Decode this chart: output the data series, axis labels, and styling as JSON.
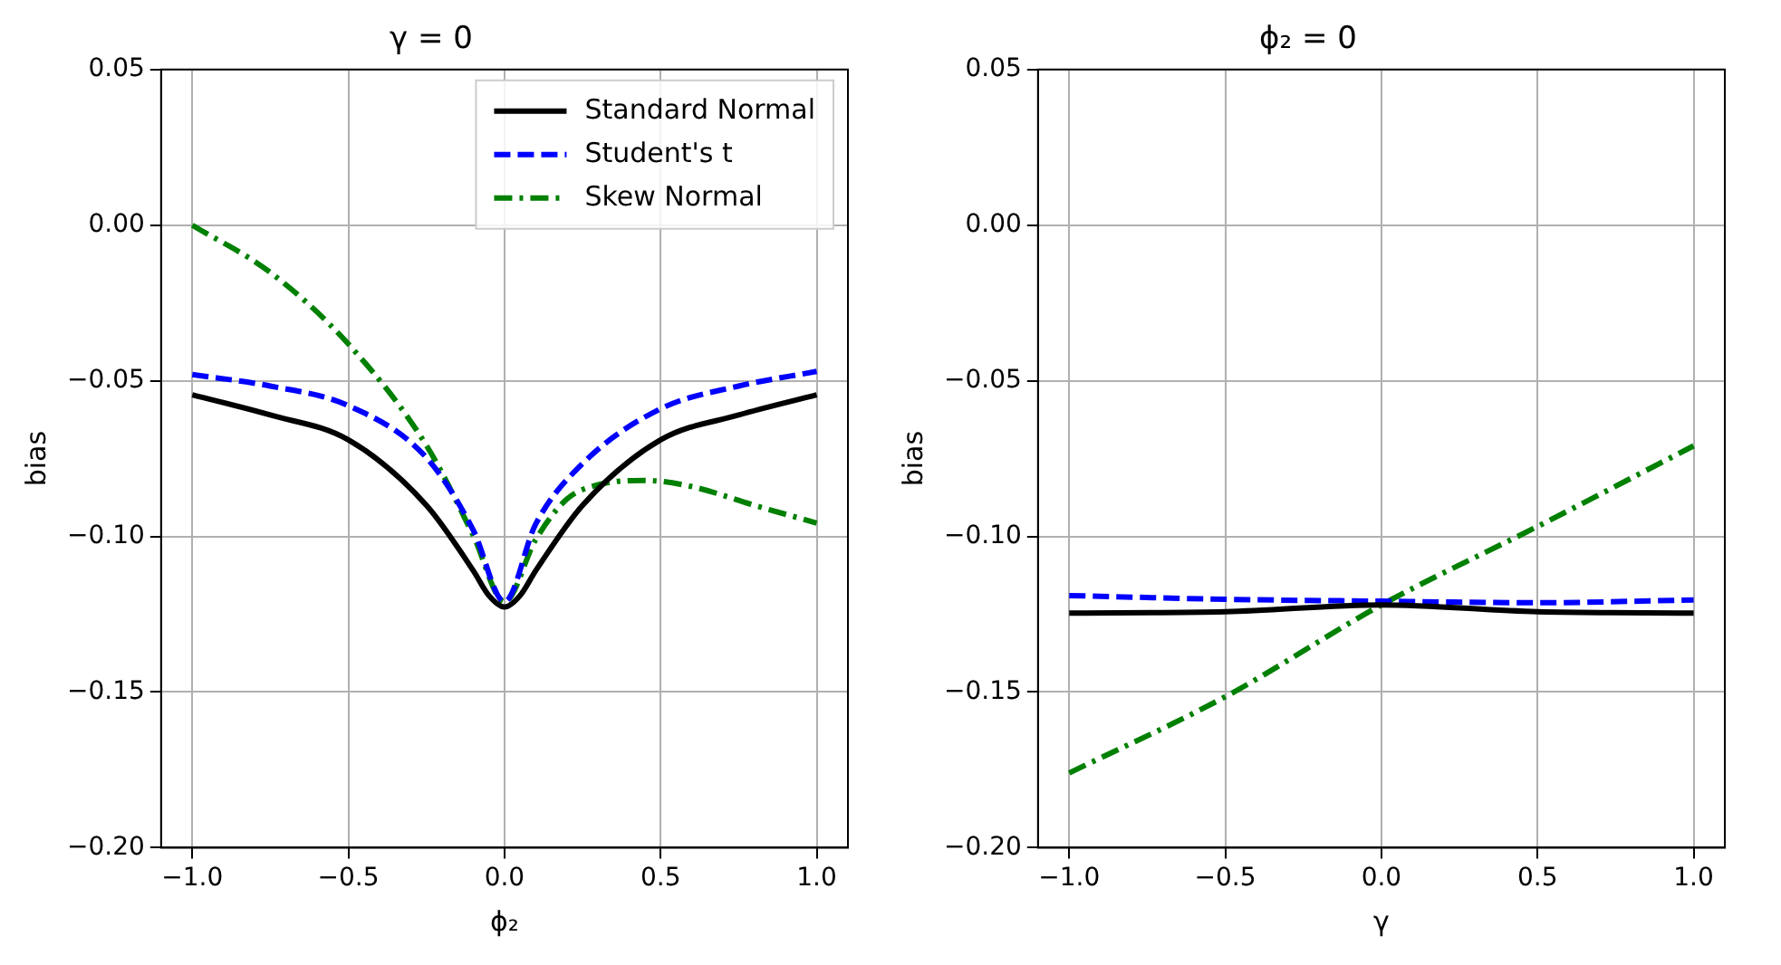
{
  "chart_data": [
    {
      "type": "line",
      "title": "γ = 0",
      "xlabel": "ϕ₂",
      "ylabel": "bias",
      "legend": "top right",
      "grid": true,
      "xlim": [
        -1.1,
        1.1
      ],
      "ylim": [
        -0.2,
        0.05
      ],
      "xticks": [
        {
          "value": -1,
          "label": "−1.0"
        },
        {
          "value": -0.5,
          "label": "−0.5"
        },
        {
          "value": 0,
          "label": "0.0"
        },
        {
          "value": 0.5,
          "label": "0.5"
        },
        {
          "value": 1,
          "label": "1.0"
        }
      ],
      "yticks": [
        {
          "value": -0.2,
          "label": "−0.20"
        },
        {
          "value": -0.15,
          "label": "−0.15"
        },
        {
          "value": -0.1,
          "label": "−0.10"
        },
        {
          "value": -0.05,
          "label": "−0.05"
        },
        {
          "value": 0,
          "label": "0.00"
        },
        {
          "value": 0.05,
          "label": "0.05"
        }
      ],
      "series": [
        {
          "name": "Standard Normal",
          "color": "#000000",
          "line_style": "solid",
          "x": [
            -1,
            -0.75,
            -0.5,
            -0.25,
            -0.1,
            -0.05,
            0,
            0.05,
            0.1,
            0.25,
            0.5,
            0.75,
            1
          ],
          "values": [
            -0.0545,
            -0.061,
            -0.069,
            -0.09,
            -0.111,
            -0.119,
            -0.1227,
            -0.119,
            -0.111,
            -0.09,
            -0.069,
            -0.061,
            -0.0545
          ]
        },
        {
          "name": "Student's t",
          "color": "#0000ff",
          "line_style": "dashed",
          "x": [
            -1,
            -0.75,
            -0.5,
            -0.25,
            -0.1,
            0,
            0.1,
            0.25,
            0.5,
            0.75,
            1
          ],
          "values": [
            -0.048,
            -0.0517,
            -0.058,
            -0.0747,
            -0.098,
            -0.121,
            -0.096,
            -0.0766,
            -0.059,
            -0.0517,
            -0.047
          ]
        },
        {
          "name": "Skew Normal",
          "color": "#008000",
          "line_style": "dashdot",
          "x": [
            -1,
            -0.75,
            -0.5,
            -0.25,
            -0.1,
            0,
            0.1,
            0.2,
            0.3,
            0.45,
            0.6,
            0.8,
            1
          ],
          "values": [
            0.0,
            -0.0152,
            -0.0382,
            -0.0708,
            -0.0997,
            -0.121,
            -0.101,
            -0.088,
            -0.0834,
            -0.082,
            -0.084,
            -0.09,
            -0.0957
          ]
        }
      ]
    },
    {
      "type": "line",
      "title": "ϕ₂ = 0",
      "xlabel": "γ",
      "ylabel": "bias",
      "legend": false,
      "grid": true,
      "xlim": [
        -1.1,
        1.1
      ],
      "ylim": [
        -0.2,
        0.05
      ],
      "xticks": [
        {
          "value": -1,
          "label": "−1.0"
        },
        {
          "value": -0.5,
          "label": "−0.5"
        },
        {
          "value": 0,
          "label": "0.0"
        },
        {
          "value": 0.5,
          "label": "0.5"
        },
        {
          "value": 1,
          "label": "1.0"
        }
      ],
      "yticks": [
        {
          "value": -0.2,
          "label": "−0.20"
        },
        {
          "value": -0.15,
          "label": "−0.15"
        },
        {
          "value": -0.1,
          "label": "−0.10"
        },
        {
          "value": -0.05,
          "label": "−0.05"
        },
        {
          "value": 0,
          "label": "0.00"
        },
        {
          "value": 0.05,
          "label": "0.05"
        }
      ],
      "series": [
        {
          "color": "#000000",
          "line_style": "solid",
          "x": [
            -1,
            -0.5,
            0,
            0.5,
            1
          ],
          "values": [
            -0.1246,
            -0.1242,
            -0.122,
            -0.1242,
            -0.1246
          ]
        },
        {
          "color": "#0000ff",
          "line_style": "dashed",
          "x": [
            -1,
            -0.5,
            0,
            0.5,
            1
          ],
          "values": [
            -0.119,
            -0.1202,
            -0.1208,
            -0.1213,
            -0.1204
          ]
        },
        {
          "color": "#008000",
          "line_style": "dashdot",
          "x": [
            -1,
            -0.5,
            0,
            0.5,
            1
          ],
          "values": [
            -0.176,
            -0.1515,
            -0.122,
            -0.0968,
            -0.0709
          ]
        }
      ]
    }
  ]
}
